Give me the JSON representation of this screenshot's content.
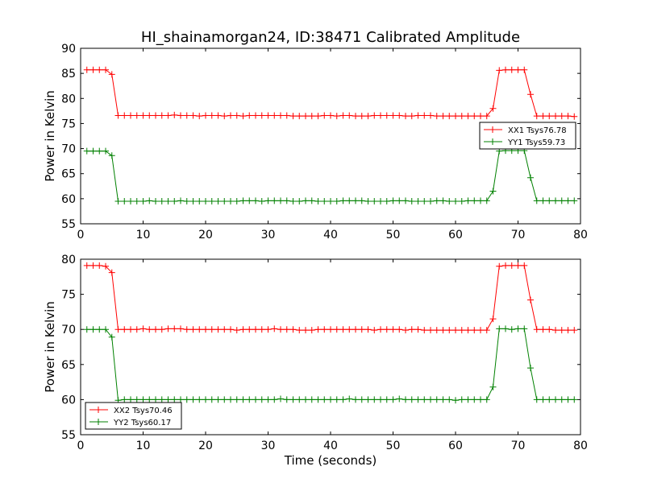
{
  "figure": {
    "title": "HI_shainamorgan24, ID:38471 Calibrated Amplitude"
  },
  "chart_data": [
    {
      "type": "line",
      "title": "HI_shainamorgan24, ID:38471 Calibrated Amplitude",
      "xlabel": "",
      "ylabel": "Power in Kelvin",
      "xlim": [
        0,
        80
      ],
      "ylim": [
        55,
        90
      ],
      "xticks": [
        0,
        10,
        20,
        30,
        40,
        50,
        60,
        70,
        80
      ],
      "yticks": [
        55,
        60,
        65,
        70,
        75,
        80,
        85,
        90
      ],
      "grid": false,
      "legend_position": "center-right",
      "series": [
        {
          "name": "XX1 Tsys76.78",
          "color": "#ff0000",
          "x": [
            1,
            2,
            3,
            4,
            5,
            6,
            7,
            8,
            9,
            10,
            11,
            12,
            13,
            14,
            15,
            16,
            17,
            18,
            19,
            20,
            21,
            22,
            23,
            24,
            25,
            26,
            27,
            28,
            29,
            30,
            31,
            32,
            33,
            34,
            35,
            36,
            37,
            38,
            39,
            40,
            41,
            42,
            43,
            44,
            45,
            46,
            47,
            48,
            49,
            50,
            51,
            52,
            53,
            54,
            55,
            56,
            57,
            58,
            59,
            60,
            61,
            62,
            63,
            64,
            65,
            66,
            67,
            68,
            69,
            70,
            71,
            72,
            73,
            74,
            75,
            76,
            77,
            78,
            79
          ],
          "y": [
            85.7,
            85.7,
            85.7,
            85.7,
            84.8,
            76.6,
            76.6,
            76.6,
            76.6,
            76.6,
            76.6,
            76.6,
            76.6,
            76.6,
            76.7,
            76.6,
            76.6,
            76.6,
            76.5,
            76.6,
            76.6,
            76.6,
            76.5,
            76.6,
            76.6,
            76.5,
            76.6,
            76.6,
            76.6,
            76.6,
            76.6,
            76.6,
            76.6,
            76.5,
            76.5,
            76.5,
            76.5,
            76.5,
            76.6,
            76.6,
            76.5,
            76.6,
            76.6,
            76.5,
            76.5,
            76.5,
            76.6,
            76.6,
            76.6,
            76.6,
            76.6,
            76.5,
            76.5,
            76.6,
            76.6,
            76.6,
            76.5,
            76.5,
            76.5,
            76.5,
            76.5,
            76.5,
            76.5,
            76.5,
            76.5,
            78.0,
            85.6,
            85.7,
            85.7,
            85.7,
            85.7,
            80.8,
            76.5,
            76.5,
            76.5,
            76.5,
            76.5,
            76.5,
            76.4
          ]
        },
        {
          "name": "YY1 Tsys59.73",
          "color": "#008000",
          "x": [
            1,
            2,
            3,
            4,
            5,
            6,
            7,
            8,
            9,
            10,
            11,
            12,
            13,
            14,
            15,
            16,
            17,
            18,
            19,
            20,
            21,
            22,
            23,
            24,
            25,
            26,
            27,
            28,
            29,
            30,
            31,
            32,
            33,
            34,
            35,
            36,
            37,
            38,
            39,
            40,
            41,
            42,
            43,
            44,
            45,
            46,
            47,
            48,
            49,
            50,
            51,
            52,
            53,
            54,
            55,
            56,
            57,
            58,
            59,
            60,
            61,
            62,
            63,
            64,
            65,
            66,
            67,
            68,
            69,
            70,
            71,
            72,
            73,
            74,
            75,
            76,
            77,
            78,
            79
          ],
          "y": [
            69.5,
            69.5,
            69.5,
            69.5,
            68.6,
            59.5,
            59.5,
            59.5,
            59.5,
            59.5,
            59.6,
            59.5,
            59.5,
            59.5,
            59.5,
            59.6,
            59.5,
            59.5,
            59.5,
            59.5,
            59.5,
            59.5,
            59.5,
            59.5,
            59.5,
            59.6,
            59.6,
            59.6,
            59.5,
            59.6,
            59.6,
            59.6,
            59.6,
            59.5,
            59.5,
            59.6,
            59.6,
            59.5,
            59.5,
            59.5,
            59.5,
            59.6,
            59.6,
            59.6,
            59.6,
            59.5,
            59.5,
            59.5,
            59.5,
            59.6,
            59.6,
            59.6,
            59.5,
            59.5,
            59.5,
            59.5,
            59.6,
            59.6,
            59.5,
            59.5,
            59.5,
            59.6,
            59.6,
            59.6,
            59.6,
            61.5,
            69.5,
            69.6,
            69.6,
            69.6,
            69.6,
            64.2,
            59.6,
            59.6,
            59.6,
            59.6,
            59.6,
            59.6,
            59.6
          ]
        }
      ]
    },
    {
      "type": "line",
      "title": "",
      "xlabel": "Time (seconds)",
      "ylabel": "Power in Kelvin",
      "xlim": [
        0,
        80
      ],
      "ylim": [
        55,
        80
      ],
      "xticks": [
        0,
        10,
        20,
        30,
        40,
        50,
        60,
        70,
        80
      ],
      "yticks": [
        55,
        60,
        65,
        70,
        75,
        80
      ],
      "grid": false,
      "legend_position": "lower-left",
      "series": [
        {
          "name": "XX2 Tsys70.46",
          "color": "#ff0000",
          "x": [
            1,
            2,
            3,
            4,
            5,
            6,
            7,
            8,
            9,
            10,
            11,
            12,
            13,
            14,
            15,
            16,
            17,
            18,
            19,
            20,
            21,
            22,
            23,
            24,
            25,
            26,
            27,
            28,
            29,
            30,
            31,
            32,
            33,
            34,
            35,
            36,
            37,
            38,
            39,
            40,
            41,
            42,
            43,
            44,
            45,
            46,
            47,
            48,
            49,
            50,
            51,
            52,
            53,
            54,
            55,
            56,
            57,
            58,
            59,
            60,
            61,
            62,
            63,
            64,
            65,
            66,
            67,
            68,
            69,
            70,
            71,
            72,
            73,
            74,
            75,
            76,
            77,
            78,
            79
          ],
          "y": [
            79.1,
            79.1,
            79.1,
            79.0,
            78.1,
            70.0,
            70.0,
            70.0,
            70.0,
            70.1,
            70.0,
            70.0,
            70.0,
            70.1,
            70.1,
            70.1,
            70.0,
            70.0,
            70.0,
            70.0,
            70.0,
            70.0,
            70.0,
            70.0,
            69.9,
            70.0,
            70.0,
            70.0,
            70.0,
            70.0,
            70.1,
            70.0,
            70.0,
            70.0,
            69.9,
            69.9,
            69.9,
            70.0,
            70.0,
            70.0,
            70.0,
            70.0,
            70.0,
            70.0,
            70.0,
            70.0,
            69.9,
            70.0,
            70.0,
            70.0,
            70.0,
            69.9,
            70.0,
            70.0,
            69.9,
            69.9,
            69.9,
            69.9,
            69.9,
            69.9,
            69.9,
            69.9,
            69.9,
            69.9,
            69.9,
            71.5,
            79.0,
            79.1,
            79.1,
            79.1,
            79.1,
            74.2,
            70.0,
            70.0,
            70.0,
            69.9,
            69.9,
            69.9,
            69.9
          ]
        },
        {
          "name": "YY2 Tsys60.17",
          "color": "#008000",
          "x": [
            1,
            2,
            3,
            4,
            5,
            6,
            7,
            8,
            9,
            10,
            11,
            12,
            13,
            14,
            15,
            16,
            17,
            18,
            19,
            20,
            21,
            22,
            23,
            24,
            25,
            26,
            27,
            28,
            29,
            30,
            31,
            32,
            33,
            34,
            35,
            36,
            37,
            38,
            39,
            40,
            41,
            42,
            43,
            44,
            45,
            46,
            47,
            48,
            49,
            50,
            51,
            52,
            53,
            54,
            55,
            56,
            57,
            58,
            59,
            60,
            61,
            62,
            63,
            64,
            65,
            66,
            67,
            68,
            69,
            70,
            71,
            72,
            73,
            74,
            75,
            76,
            77,
            78,
            79
          ],
          "y": [
            70.0,
            70.0,
            70.0,
            70.0,
            68.9,
            59.9,
            60.0,
            60.0,
            60.0,
            60.0,
            60.0,
            60.0,
            60.0,
            60.0,
            60.0,
            60.0,
            60.0,
            60.0,
            60.0,
            60.0,
            60.0,
            60.0,
            60.0,
            60.0,
            60.0,
            60.0,
            60.0,
            60.0,
            60.0,
            60.0,
            60.0,
            60.1,
            60.0,
            60.0,
            60.0,
            60.0,
            60.0,
            60.0,
            60.0,
            60.0,
            60.0,
            60.0,
            60.1,
            60.0,
            60.0,
            60.0,
            60.0,
            60.0,
            60.0,
            60.0,
            60.1,
            60.0,
            60.0,
            60.0,
            60.0,
            60.0,
            60.0,
            60.0,
            60.0,
            59.9,
            60.0,
            60.0,
            60.0,
            60.0,
            60.0,
            61.8,
            70.1,
            70.1,
            70.0,
            70.1,
            70.1,
            64.5,
            60.0,
            60.0,
            60.0,
            60.0,
            60.0,
            60.0,
            60.0
          ]
        }
      ]
    }
  ]
}
